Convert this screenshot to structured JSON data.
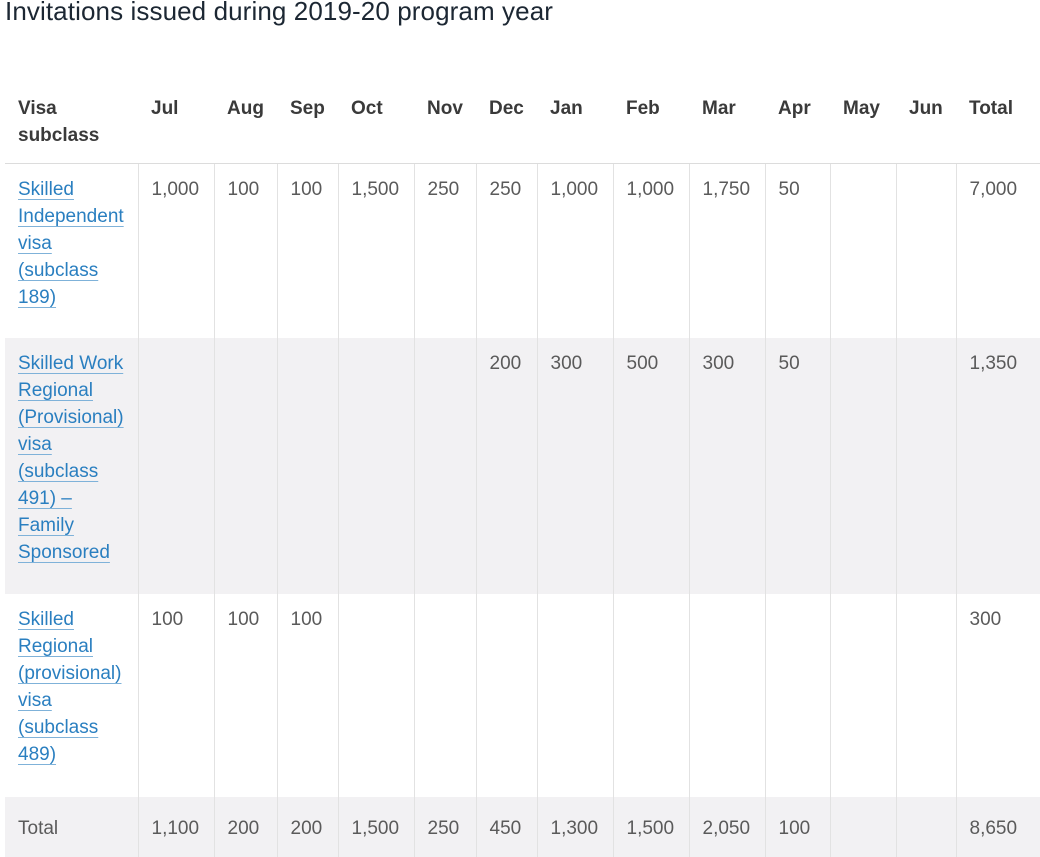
{
  "title": "Invitations issued during 2019-20 program year",
  "table": {
    "headers": [
      "Visa subclass",
      "Jul",
      "Aug",
      "Sep",
      "Oct",
      "Nov",
      "Dec",
      "Jan",
      "Feb",
      "Mar",
      "Apr",
      "May",
      "Jun",
      "Total"
    ],
    "rows": [
      {
        "label": "Skilled Independent visa (subclass 189)",
        "values": [
          "1,000",
          "100",
          "100",
          "1,500",
          "250",
          "250",
          "1,000",
          "1,000",
          "1,750",
          "50",
          "",
          "",
          "7,000"
        ]
      },
      {
        "label": "Skilled Work Regional (Provisional) visa (subclass 491) – Family Sponsored",
        "values": [
          "",
          "",
          "",
          "",
          "",
          "200",
          "300",
          "500",
          "300",
          "50",
          "",
          "",
          "1,350"
        ]
      },
      {
        "label": "Skilled Regional (provisional) visa (subclass 489)",
        "values": [
          "100",
          "100",
          "100",
          "",
          "",
          "",
          "",
          "",
          "",
          "",
          "",
          "",
          "300"
        ]
      }
    ],
    "total_row": {
      "label": "Total",
      "values": [
        "1,100",
        "200",
        "200",
        "1,500",
        "250",
        "450",
        "1,300",
        "1,500",
        "2,050",
        "100",
        "",
        "",
        "8,650"
      ]
    }
  },
  "colors": {
    "link": "#2a7fc0",
    "shaded_row": "#f2f1f3",
    "title": "#1c2733"
  }
}
